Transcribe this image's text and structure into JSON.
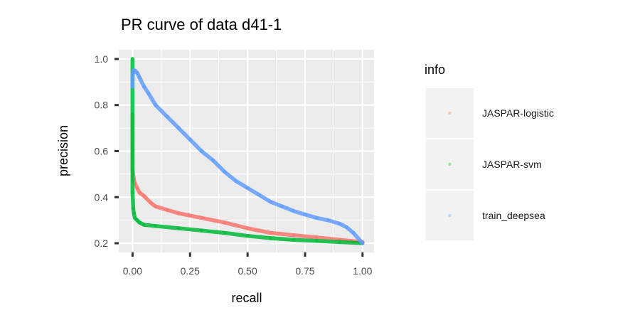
{
  "chart_data": {
    "type": "line",
    "title": "PR curve of data d41-1",
    "xlabel": "recall",
    "ylabel": "precision",
    "xlim": [
      -0.06,
      1.05
    ],
    "ylim": [
      0.16,
      1.04
    ],
    "x_ticks": [
      0.0,
      0.25,
      0.5,
      0.75,
      1.0
    ],
    "x_tick_labels": [
      "0.00",
      "0.25",
      "0.50",
      "0.75",
      "1.00"
    ],
    "y_ticks": [
      0.2,
      0.4,
      0.6,
      0.8,
      1.0
    ],
    "y_tick_labels": [
      "0.2",
      "0.4",
      "0.6",
      "0.8",
      "1.0"
    ],
    "grid": true,
    "legend": {
      "title": "info",
      "position": "right"
    },
    "series": [
      {
        "name": "JASPAR-logistic",
        "color": "#F8766D",
        "points": [
          [
            0.0,
            0.76
          ],
          [
            0.0,
            0.7
          ],
          [
            0.0,
            0.63
          ],
          [
            0.0,
            0.57
          ],
          [
            0.0,
            0.52
          ],
          [
            0.002,
            0.5
          ],
          [
            0.005,
            0.48
          ],
          [
            0.01,
            0.46
          ],
          [
            0.02,
            0.44
          ],
          [
            0.03,
            0.42
          ],
          [
            0.05,
            0.405
          ],
          [
            0.08,
            0.375
          ],
          [
            0.1,
            0.36
          ],
          [
            0.15,
            0.345
          ],
          [
            0.2,
            0.33
          ],
          [
            0.25,
            0.32
          ],
          [
            0.3,
            0.31
          ],
          [
            0.4,
            0.29
          ],
          [
            0.5,
            0.265
          ],
          [
            0.6,
            0.245
          ],
          [
            0.7,
            0.235
          ],
          [
            0.8,
            0.225
          ],
          [
            0.9,
            0.215
          ],
          [
            0.95,
            0.21
          ],
          [
            1.0,
            0.205
          ]
        ]
      },
      {
        "name": "JASPAR-svm",
        "color": "#00BA38",
        "points": [
          [
            0.0,
            1.0
          ],
          [
            0.0,
            0.47
          ],
          [
            0.0,
            0.42
          ],
          [
            0.003,
            0.35
          ],
          [
            0.006,
            0.33
          ],
          [
            0.01,
            0.31
          ],
          [
            0.02,
            0.3
          ],
          [
            0.03,
            0.29
          ],
          [
            0.05,
            0.28
          ],
          [
            0.1,
            0.275
          ],
          [
            0.2,
            0.265
          ],
          [
            0.3,
            0.255
          ],
          [
            0.4,
            0.245
          ],
          [
            0.5,
            0.232
          ],
          [
            0.6,
            0.222
          ],
          [
            0.7,
            0.215
          ],
          [
            0.8,
            0.21
          ],
          [
            0.9,
            0.205
          ],
          [
            1.0,
            0.2
          ]
        ]
      },
      {
        "name": "train_deepsea",
        "color": "#619CFF",
        "points": [
          [
            0.0,
            0.88
          ],
          [
            0.0,
            0.92
          ],
          [
            0.003,
            0.95
          ],
          [
            0.01,
            0.95
          ],
          [
            0.02,
            0.94
          ],
          [
            0.03,
            0.92
          ],
          [
            0.05,
            0.88
          ],
          [
            0.07,
            0.85
          ],
          [
            0.1,
            0.8
          ],
          [
            0.15,
            0.75
          ],
          [
            0.2,
            0.7
          ],
          [
            0.25,
            0.65
          ],
          [
            0.3,
            0.6
          ],
          [
            0.35,
            0.56
          ],
          [
            0.4,
            0.51
          ],
          [
            0.45,
            0.47
          ],
          [
            0.5,
            0.44
          ],
          [
            0.55,
            0.41
          ],
          [
            0.6,
            0.38
          ],
          [
            0.65,
            0.36
          ],
          [
            0.7,
            0.34
          ],
          [
            0.75,
            0.325
          ],
          [
            0.8,
            0.31
          ],
          [
            0.85,
            0.3
          ],
          [
            0.9,
            0.285
          ],
          [
            0.93,
            0.27
          ],
          [
            0.96,
            0.245
          ],
          [
            1.0,
            0.2
          ]
        ]
      }
    ]
  }
}
